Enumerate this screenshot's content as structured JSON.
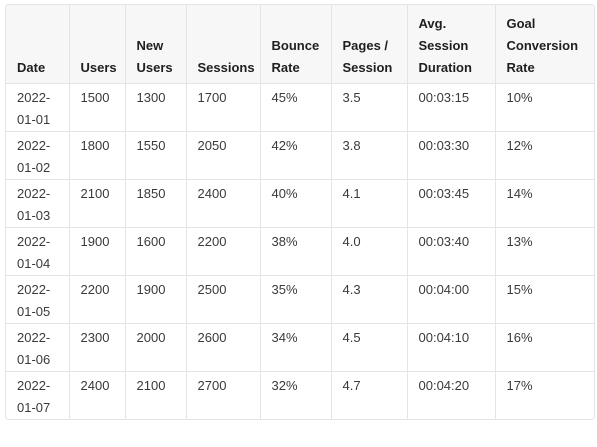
{
  "table": {
    "columns": [
      "Date",
      "Users",
      "New Users",
      "Sessions",
      "Bounce Rate",
      "Pages / Session",
      "Avg. Session Duration",
      "Goal Conversion Rate"
    ],
    "rows": [
      [
        "2022-01-01",
        "1500",
        "1300",
        "1700",
        "45%",
        "3.5",
        "00:03:15",
        "10%"
      ],
      [
        "2022-01-02",
        "1800",
        "1550",
        "2050",
        "42%",
        "3.8",
        "00:03:30",
        "12%"
      ],
      [
        "2022-01-03",
        "2100",
        "1850",
        "2400",
        "40%",
        "4.1",
        "00:03:45",
        "14%"
      ],
      [
        "2022-01-04",
        "1900",
        "1600",
        "2200",
        "38%",
        "4.0",
        "00:03:40",
        "13%"
      ],
      [
        "2022-01-05",
        "2200",
        "1900",
        "2500",
        "35%",
        "4.3",
        "00:04:00",
        "15%"
      ],
      [
        "2022-01-06",
        "2300",
        "2000",
        "2600",
        "34%",
        "4.5",
        "00:04:10",
        "16%"
      ],
      [
        "2022-01-07",
        "2400",
        "2100",
        "2700",
        "32%",
        "4.7",
        "00:04:20",
        "17%"
      ]
    ]
  }
}
